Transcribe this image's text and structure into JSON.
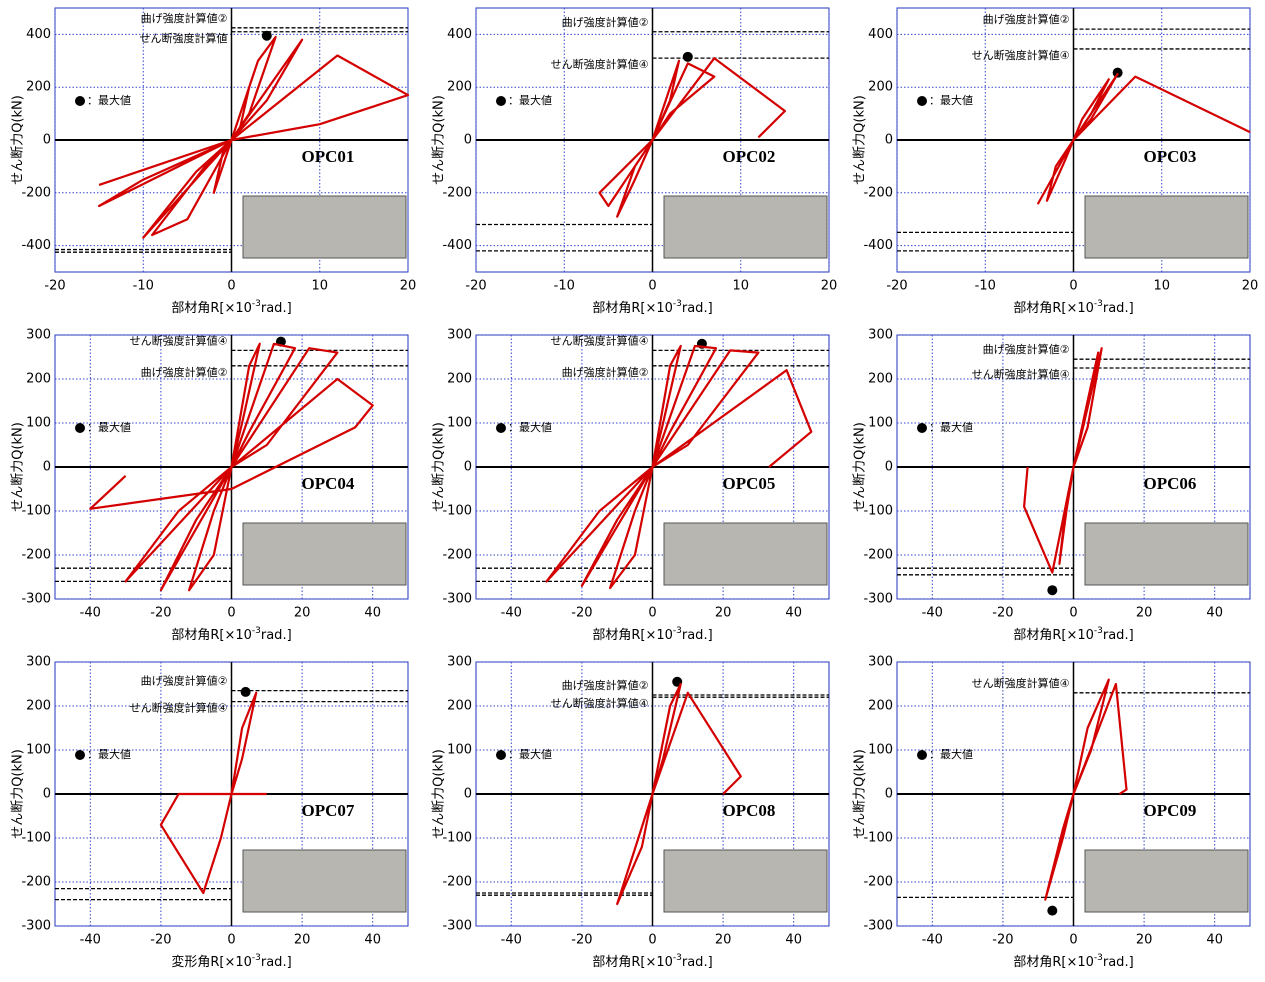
{
  "chart_data": [
    {
      "type": "line",
      "title": "OPC01",
      "x_label": [
        "部材角R[×10",
        "-3",
        "rad.]"
      ],
      "y_label": "せん断力Q(kN)",
      "legend_label": "：最大値",
      "xlim": [
        -20,
        20
      ],
      "xticks": [
        -20,
        -10,
        0,
        10,
        20
      ],
      "ylim": [
        -500,
        500
      ],
      "yticks": [
        -400,
        -200,
        0,
        200,
        400
      ],
      "grid": true,
      "ref_lines": [
        {
          "name": "曲げ強度計算値②",
          "values": [
            425,
            -425
          ]
        },
        {
          "name": "せん断強度計算値",
          "values": [
            410,
            -415
          ]
        }
      ],
      "max_point": {
        "x": 4,
        "y": 395
      },
      "series": [
        {
          "color": "#d40000",
          "x": [
            0,
            1,
            2,
            1,
            0,
            -1,
            -2,
            -1,
            0,
            3,
            5,
            2,
            0,
            -5,
            -9,
            -3,
            0,
            8,
            4,
            0,
            -10,
            -4,
            0,
            12,
            20,
            10,
            0,
            -15,
            -10,
            0,
            -15
          ],
          "y": [
            0,
            100,
            200,
            50,
            0,
            -100,
            -200,
            -50,
            0,
            300,
            390,
            100,
            0,
            -300,
            -360,
            -100,
            0,
            380,
            150,
            0,
            -370,
            -120,
            0,
            320,
            170,
            60,
            0,
            -250,
            -150,
            0,
            -170
          ]
        }
      ]
    },
    {
      "type": "line",
      "title": "OPC02",
      "x_label": [
        "部材角R[×10",
        "-3",
        "rad.]"
      ],
      "y_label": "せん断力Q(kN)",
      "legend_label": "：最大値",
      "xlim": [
        -20,
        20
      ],
      "xticks": [
        -20,
        -10,
        0,
        10,
        20
      ],
      "ylim": [
        -500,
        500
      ],
      "yticks": [
        -400,
        -200,
        0,
        200,
        400
      ],
      "grid": true,
      "ref_lines": [
        {
          "name": "曲げ強度計算値②",
          "values": [
            410,
            -420
          ]
        },
        {
          "name": "せん断強度計算値④",
          "values": [
            310,
            -320
          ]
        }
      ],
      "max_point": {
        "x": 4,
        "y": 315
      },
      "series": [
        {
          "color": "#d40000",
          "x": [
            0,
            2,
            3,
            1,
            0,
            -2,
            -4,
            -2,
            0,
            4,
            7,
            2,
            0,
            -5,
            -6,
            0,
            7,
            15,
            12
          ],
          "y": [
            0,
            150,
            300,
            100,
            0,
            -150,
            -290,
            -100,
            0,
            290,
            240,
            100,
            0,
            -250,
            -200,
            0,
            310,
            110,
            10
          ]
        }
      ]
    },
    {
      "type": "line",
      "title": "OPC03",
      "x_label": [
        "部材角R[×10",
        "-3",
        "rad.]"
      ],
      "y_label": "せん断力Q(kN)",
      "legend_label": "：最大値",
      "xlim": [
        -20,
        20
      ],
      "xticks": [
        -20,
        -10,
        0,
        10,
        20
      ],
      "ylim": [
        -500,
        500
      ],
      "yticks": [
        -400,
        -200,
        0,
        200,
        400
      ],
      "grid": true,
      "ref_lines": [
        {
          "name": "曲げ強度計算値②",
          "values": [
            420,
            -420
          ]
        },
        {
          "name": "せん断強度計算値④",
          "values": [
            345,
            -350
          ]
        }
      ],
      "max_point": {
        "x": 5,
        "y": 255
      },
      "series": [
        {
          "color": "#d40000",
          "x": [
            0,
            2,
            4,
            1,
            0,
            -2,
            -3,
            -1,
            0,
            5,
            2,
            0,
            -4,
            0,
            7,
            20
          ],
          "y": [
            0,
            100,
            230,
            80,
            0,
            -100,
            -230,
            -80,
            0,
            250,
            80,
            0,
            -240,
            0,
            240,
            30
          ]
        }
      ]
    },
    {
      "type": "line",
      "title": "OPC04",
      "x_label": [
        "部材角R[×10",
        "-3",
        "rad.]"
      ],
      "y_label": "せん断力Q(kN)",
      "legend_label": "：最大値",
      "xlim": [
        -50,
        50
      ],
      "xticks": [
        -40,
        -20,
        0,
        20,
        40
      ],
      "ylim": [
        -300,
        300
      ],
      "yticks": [
        -300,
        -200,
        -100,
        0,
        100,
        200,
        300
      ],
      "grid": true,
      "ref_lines": [
        {
          "name": "せん断強度計算値④",
          "values": [
            265,
            -260
          ]
        },
        {
          "name": "曲げ強度計算値②",
          "values": [
            230,
            -230
          ]
        }
      ],
      "max_point": {
        "x": 14,
        "y": 285
      },
      "series": [
        {
          "color": "#d40000",
          "x": [
            0,
            5,
            8,
            3,
            0,
            -5,
            -12,
            -5,
            0,
            12,
            18,
            5,
            0,
            -20,
            -10,
            0,
            22,
            30,
            10,
            0,
            -30,
            -15,
            0,
            30,
            40,
            35,
            0,
            -40,
            -38,
            -30
          ],
          "y": [
            0,
            230,
            280,
            100,
            0,
            -200,
            -280,
            -100,
            0,
            280,
            270,
            80,
            0,
            -280,
            -120,
            0,
            270,
            260,
            50,
            0,
            -260,
            -100,
            0,
            200,
            140,
            90,
            -50,
            -95,
            -80,
            -20
          ]
        }
      ]
    },
    {
      "type": "line",
      "title": "OPC05",
      "x_label": [
        "部材角R[×10",
        "-3",
        "rad.]"
      ],
      "y_label": "せん断力Q(kN)",
      "legend_label": "：最大値",
      "xlim": [
        -50,
        50
      ],
      "xticks": [
        -40,
        -20,
        0,
        20,
        40
      ],
      "ylim": [
        -300,
        300
      ],
      "yticks": [
        -300,
        -200,
        -100,
        0,
        100,
        200,
        300
      ],
      "grid": true,
      "ref_lines": [
        {
          "name": "せん断強度計算値④",
          "values": [
            265,
            -260
          ]
        },
        {
          "name": "曲げ強度計算値②",
          "values": [
            230,
            -230
          ]
        }
      ],
      "max_point": {
        "x": 14,
        "y": 280
      },
      "series": [
        {
          "color": "#d40000",
          "x": [
            0,
            5,
            8,
            3,
            0,
            -5,
            -12,
            -5,
            0,
            12,
            18,
            5,
            0,
            -20,
            -10,
            0,
            22,
            30,
            10,
            0,
            -30,
            -15,
            0,
            38,
            45,
            33
          ],
          "y": [
            0,
            230,
            275,
            100,
            0,
            -200,
            -275,
            -100,
            0,
            275,
            270,
            80,
            0,
            -270,
            -120,
            0,
            265,
            260,
            50,
            0,
            -260,
            -100,
            0,
            220,
            80,
            0
          ]
        }
      ]
    },
    {
      "type": "line",
      "title": "OPC06",
      "x_label": [
        "部材角R[×10",
        "-3",
        "rad.]"
      ],
      "y_label": "せん断力Q(kN)",
      "legend_label": "：最大値",
      "xlim": [
        -50,
        50
      ],
      "xticks": [
        -40,
        -20,
        0,
        20,
        40
      ],
      "ylim": [
        -300,
        300
      ],
      "yticks": [
        -300,
        -200,
        -100,
        0,
        100,
        200,
        300
      ],
      "grid": true,
      "ref_lines": [
        {
          "name": "曲げ強度計算値②",
          "values": [
            245,
            -245
          ]
        },
        {
          "name": "せん断強度計算値④",
          "values": [
            225,
            -230
          ]
        }
      ],
      "max_point": {
        "x": -6,
        "y": -280
      },
      "series": [
        {
          "color": "#d40000",
          "x": [
            0,
            4,
            7,
            3,
            0,
            -2,
            -4,
            -2,
            0,
            8,
            4,
            0,
            -6,
            -14,
            -13
          ],
          "y": [
            0,
            150,
            260,
            100,
            0,
            -100,
            -220,
            -80,
            0,
            270,
            90,
            0,
            -240,
            -90,
            0
          ]
        }
      ]
    },
    {
      "type": "line",
      "title": "OPC07",
      "x_label": [
        "変形角R[×10",
        "-3",
        "rad.]"
      ],
      "y_label": "せん断力Q(kN)",
      "legend_label": "：最大値",
      "xlim": [
        -50,
        50
      ],
      "xticks": [
        -40,
        -20,
        0,
        20,
        40
      ],
      "ylim": [
        -300,
        300
      ],
      "yticks": [
        -300,
        -200,
        -100,
        0,
        100,
        200,
        300
      ],
      "grid": true,
      "ref_lines": [
        {
          "name": "曲げ強度計算値②",
          "values": [
            235,
            -240
          ]
        },
        {
          "name": "せん断強度計算値④",
          "values": [
            210,
            -215
          ]
        }
      ],
      "max_point": {
        "x": 4,
        "y": 232
      },
      "series": [
        {
          "color": "#d40000",
          "x": [
            0,
            3,
            7,
            3,
            0,
            -3,
            -8,
            -20,
            -15,
            -10,
            0,
            10
          ],
          "y": [
            0,
            150,
            230,
            80,
            0,
            -100,
            -225,
            -70,
            0,
            0,
            0,
            0
          ]
        }
      ]
    },
    {
      "type": "line",
      "title": "OPC08",
      "x_label": [
        "部材角R[×10",
        "-3",
        "rad.]"
      ],
      "y_label": "せん断力Q(kN)",
      "legend_label": "：最大値",
      "xlim": [
        -50,
        50
      ],
      "xticks": [
        -40,
        -20,
        0,
        20,
        40
      ],
      "ylim": [
        -300,
        300
      ],
      "yticks": [
        -300,
        -200,
        -100,
        0,
        100,
        200,
        300
      ],
      "grid": true,
      "ref_lines": [
        {
          "name": "曲げ強度計算値②",
          "values": [
            225,
            -230
          ]
        },
        {
          "name": "せん断強度計算値④",
          "values": [
            220,
            -225
          ]
        }
      ],
      "max_point": {
        "x": 7,
        "y": 255
      },
      "series": [
        {
          "color": "#d40000",
          "x": [
            0,
            5,
            8,
            3,
            0,
            -3,
            -10,
            -4,
            0,
            10,
            25,
            20
          ],
          "y": [
            0,
            200,
            250,
            80,
            0,
            -120,
            -250,
            -100,
            0,
            230,
            40,
            0
          ]
        }
      ]
    },
    {
      "type": "line",
      "title": "OPC09",
      "x_label": [
        "部材角R[×10",
        "-3",
        "rad.]"
      ],
      "y_label": "せん断力Q(kN)",
      "legend_label": "：最大値",
      "xlim": [
        -50,
        50
      ],
      "xticks": [
        -40,
        -20,
        0,
        20,
        40
      ],
      "ylim": [
        -300,
        300
      ],
      "yticks": [
        -300,
        -200,
        -100,
        0,
        100,
        200,
        300
      ],
      "grid": true,
      "ref_lines": [
        {
          "name": "せん断強度計算値④",
          "values": [
            230,
            -235
          ]
        }
      ],
      "max_point": {
        "x": -6,
        "y": -265
      },
      "series": [
        {
          "color": "#d40000",
          "x": [
            0,
            4,
            10,
            5,
            0,
            -3,
            -8,
            -3,
            0,
            12,
            15,
            13
          ],
          "y": [
            0,
            150,
            260,
            100,
            0,
            -100,
            -240,
            -80,
            0,
            250,
            10,
            0
          ]
        }
      ]
    }
  ]
}
